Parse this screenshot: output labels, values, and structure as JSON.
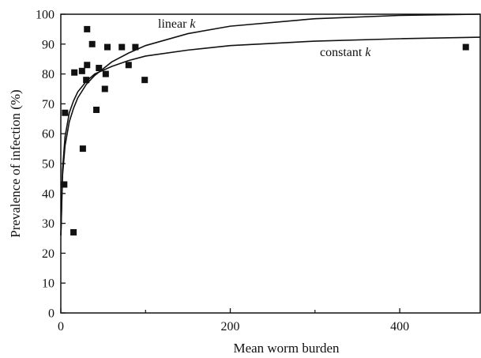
{
  "chart_data": {
    "type": "scatter",
    "xlabel": "Mean worm burden",
    "ylabel": "Prevalence of infection (%)",
    "xlim": [
      0,
      495
    ],
    "ylim": [
      0,
      100
    ],
    "x_ticks": [
      0,
      200,
      400
    ],
    "x_tick_labels": [
      "0",
      "200",
      "400"
    ],
    "y_ticks": [
      0,
      10,
      20,
      30,
      40,
      50,
      60,
      70,
      80,
      90,
      100
    ],
    "y_tick_labels": [
      "0",
      "10",
      "20",
      "30",
      "40",
      "50",
      "60",
      "70",
      "80",
      "90",
      "100"
    ],
    "grid": false,
    "points": [
      {
        "x": 4,
        "y": 43
      },
      {
        "x": 5,
        "y": 67
      },
      {
        "x": 15,
        "y": 27
      },
      {
        "x": 16,
        "y": 80.5
      },
      {
        "x": 25,
        "y": 81
      },
      {
        "x": 26,
        "y": 55
      },
      {
        "x": 30,
        "y": 78
      },
      {
        "x": 31,
        "y": 83
      },
      {
        "x": 31,
        "y": 95
      },
      {
        "x": 37,
        "y": 90
      },
      {
        "x": 42,
        "y": 68
      },
      {
        "x": 45,
        "y": 82
      },
      {
        "x": 52,
        "y": 75
      },
      {
        "x": 53,
        "y": 80
      },
      {
        "x": 55,
        "y": 89
      },
      {
        "x": 72,
        "y": 89
      },
      {
        "x": 80,
        "y": 83
      },
      {
        "x": 88,
        "y": 89
      },
      {
        "x": 99,
        "y": 78
      },
      {
        "x": 478,
        "y": 89
      }
    ],
    "curves": [
      {
        "label_main": "linear ",
        "label_italic": "k",
        "points": [
          [
            0.1,
            26
          ],
          [
            2,
            46
          ],
          [
            5,
            56
          ],
          [
            10,
            64
          ],
          [
            15,
            68.5
          ],
          [
            20,
            72
          ],
          [
            30,
            76.5
          ],
          [
            40,
            79.5
          ],
          [
            60,
            84
          ],
          [
            80,
            87
          ],
          [
            100,
            89.5
          ],
          [
            150,
            93.5
          ],
          [
            200,
            96
          ],
          [
            300,
            98.5
          ],
          [
            400,
            99.6
          ],
          [
            495,
            100
          ]
        ]
      },
      {
        "label_main": "constant ",
        "label_italic": "k",
        "points": [
          [
            0.1,
            26
          ],
          [
            2,
            48
          ],
          [
            5,
            59
          ],
          [
            10,
            67
          ],
          [
            15,
            71
          ],
          [
            20,
            74
          ],
          [
            30,
            77.5
          ],
          [
            40,
            80
          ],
          [
            60,
            82.5
          ],
          [
            80,
            84.5
          ],
          [
            100,
            86
          ],
          [
            150,
            88
          ],
          [
            200,
            89.5
          ],
          [
            300,
            91
          ],
          [
            400,
            91.8
          ],
          [
            495,
            92.3
          ]
        ]
      }
    ]
  }
}
